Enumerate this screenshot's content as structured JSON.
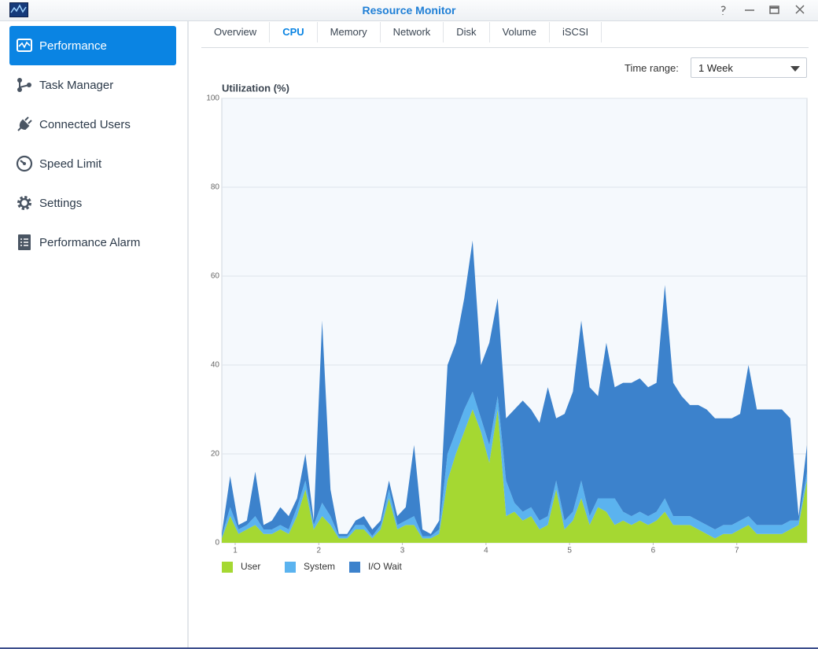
{
  "window": {
    "title": "Resource Monitor"
  },
  "sidebar": {
    "items": [
      "Performance",
      "Task Manager",
      "Connected Users",
      "Speed Limit",
      "Settings",
      "Performance Alarm"
    ]
  },
  "tabs": [
    "Overview",
    "CPU",
    "Memory",
    "Network",
    "Disk",
    "Volume",
    "iSCSI"
  ],
  "time_range": {
    "label": "Time range:",
    "value": "1 Week"
  },
  "chart_data": {
    "type": "stacked_area",
    "title": "Utilization (%)",
    "x": [
      0.84,
      0.94,
      1.04,
      1.14,
      1.24,
      1.34,
      1.44,
      1.54,
      1.64,
      1.74,
      1.84,
      1.94,
      2.04,
      2.14,
      2.24,
      2.34,
      2.44,
      2.54,
      2.64,
      2.74,
      2.84,
      2.94,
      3.04,
      3.14,
      3.24,
      3.34,
      3.44,
      3.54,
      3.64,
      3.74,
      3.84,
      3.94,
      4.04,
      4.14,
      4.24,
      4.34,
      4.44,
      4.54,
      4.64,
      4.74,
      4.84,
      4.94,
      5.04,
      5.14,
      5.24,
      5.34,
      5.44,
      5.54,
      5.64,
      5.74,
      5.84,
      5.94,
      6.04,
      6.14,
      6.24,
      6.34,
      6.44,
      6.54,
      6.64,
      6.74,
      6.84,
      6.94,
      7.04,
      7.14,
      7.24,
      7.34,
      7.44,
      7.54,
      7.64,
      7.74,
      7.84
    ],
    "series": [
      {
        "name": "User",
        "color": "#a5d832",
        "values": [
          1,
          6,
          2,
          3,
          4,
          2,
          2,
          3,
          2,
          6,
          12,
          3,
          6,
          4,
          1,
          1,
          3,
          3,
          1,
          3,
          10,
          3,
          4,
          4,
          1,
          1,
          2,
          14,
          20,
          25,
          30,
          25,
          18,
          30,
          6,
          7,
          5,
          6,
          3,
          4,
          12,
          3,
          5,
          10,
          4,
          8,
          7,
          4,
          5,
          4,
          5,
          4,
          5,
          7,
          4,
          4,
          4,
          3,
          2,
          1,
          2,
          2,
          3,
          4,
          2,
          2,
          2,
          2,
          3,
          4,
          14
        ]
      },
      {
        "name": "System",
        "color": "#5bb3ef",
        "values": [
          0.5,
          2,
          1,
          1,
          2,
          1,
          1,
          1,
          1,
          2,
          2,
          1,
          3,
          2,
          0.5,
          0.5,
          1,
          1,
          0.5,
          1,
          2,
          1,
          1,
          2,
          0.5,
          0.5,
          1,
          6,
          5,
          5,
          4,
          3,
          4,
          3,
          8,
          2,
          2,
          2,
          2,
          2,
          2,
          2,
          2,
          4,
          2,
          2,
          3,
          6,
          2,
          2,
          2,
          2,
          2,
          3,
          2,
          2,
          2,
          2,
          2,
          2,
          2,
          2,
          2,
          2,
          2,
          2,
          2,
          2,
          2,
          1,
          2
        ]
      },
      {
        "name": "I/O Wait",
        "color": "#3c82cc",
        "values": [
          0.5,
          7,
          1,
          1,
          10,
          1,
          2,
          4,
          3,
          2,
          6,
          1,
          41,
          6,
          0.5,
          0.5,
          1,
          2,
          1.5,
          1,
          2,
          2,
          3,
          16,
          1.5,
          0.5,
          2,
          20,
          20,
          25,
          34,
          12,
          23,
          22,
          14,
          21,
          25,
          22,
          22,
          29,
          14,
          24,
          27,
          36,
          29,
          23,
          35,
          25,
          29,
          30,
          30,
          29,
          29,
          48,
          30,
          27,
          25,
          26,
          26,
          25,
          24,
          24,
          24,
          34,
          26,
          26,
          26,
          26,
          23,
          1,
          6
        ]
      }
    ],
    "xlim": [
      0.84,
      7.84
    ],
    "xticks": [
      1,
      2,
      3,
      4,
      5,
      6,
      7
    ],
    "ylim": [
      0,
      100
    ],
    "yticks": [
      0,
      20,
      40,
      60,
      80,
      100
    ],
    "grid": true,
    "background": "#f5f9fd"
  }
}
